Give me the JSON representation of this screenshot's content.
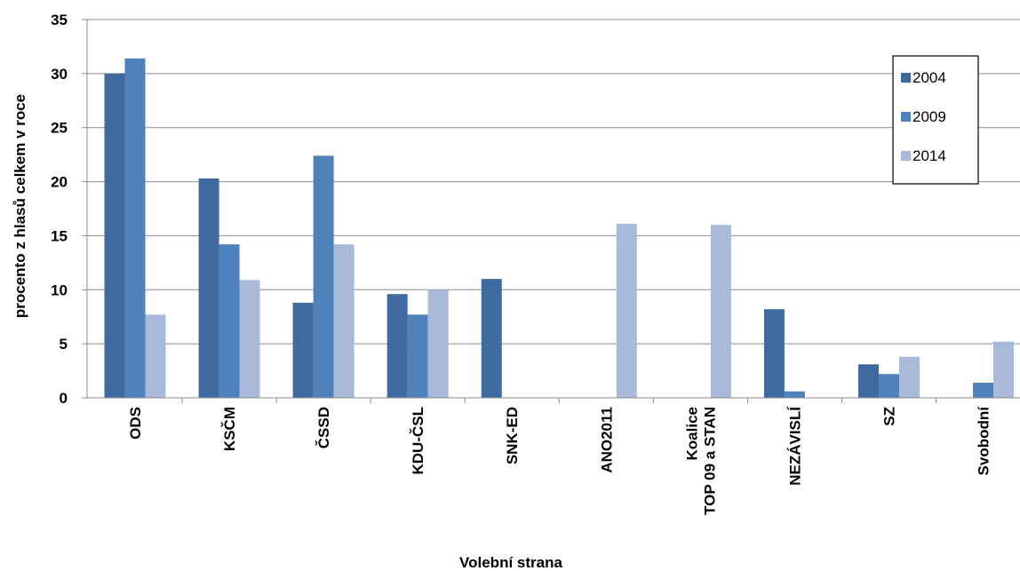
{
  "chart_data": {
    "type": "bar",
    "categories": [
      "ODS",
      "KSČM",
      "ČSSD",
      "KDU-ČSL",
      "SNK-ED",
      "ANO2011",
      [
        "Koalice",
        "TOP 09 a STAN"
      ],
      "NEZÁVISLÍ",
      "SZ",
      "Svobodní"
    ],
    "series": [
      {
        "name": "2004",
        "color": "#3f6a9f",
        "values": [
          30.0,
          20.3,
          8.8,
          9.6,
          11.0,
          null,
          null,
          8.2,
          3.1,
          null
        ]
      },
      {
        "name": "2009",
        "color": "#4f81bd",
        "values": [
          31.4,
          14.2,
          22.4,
          7.7,
          null,
          null,
          null,
          0.6,
          2.2,
          1.4
        ]
      },
      {
        "name": "2014",
        "color": "#a8b9d9",
        "values": [
          7.7,
          10.9,
          14.2,
          10.0,
          null,
          16.1,
          16.0,
          null,
          3.8,
          5.2
        ]
      }
    ],
    "xlabel": "Volební strana",
    "ylabel": "procento z hlasů celkem v roce",
    "ylim": [
      0,
      35
    ],
    "yticks": [
      0,
      5,
      10,
      15,
      20,
      25,
      30,
      35
    ],
    "grid": true,
    "legend_position": "top-right"
  }
}
